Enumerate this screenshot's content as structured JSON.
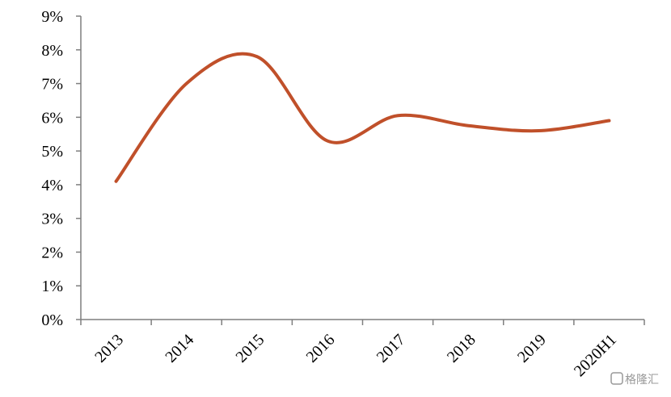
{
  "chart_data": {
    "type": "line",
    "categories": [
      "2013",
      "2014",
      "2015",
      "2016",
      "2017",
      "2018",
      "2019",
      "2020H1"
    ],
    "series": [
      {
        "name": "value",
        "color": "#c0502a",
        "values": [
          4.1,
          7.0,
          7.8,
          5.3,
          6.05,
          5.75,
          5.6,
          5.9
        ]
      }
    ],
    "ylim": [
      0,
      9
    ],
    "yticks": [
      {
        "value": 0,
        "label": "0%"
      },
      {
        "value": 1,
        "label": "1%"
      },
      {
        "value": 2,
        "label": "2%"
      },
      {
        "value": 3,
        "label": "3%"
      },
      {
        "value": 4,
        "label": "4%"
      },
      {
        "value": 5,
        "label": "5%"
      },
      {
        "value": 6,
        "label": "6%"
      },
      {
        "value": 7,
        "label": "7%"
      },
      {
        "value": 8,
        "label": "8%"
      },
      {
        "value": 9,
        "label": "9%"
      }
    ],
    "smooth": true
  },
  "watermark": "格隆汇"
}
